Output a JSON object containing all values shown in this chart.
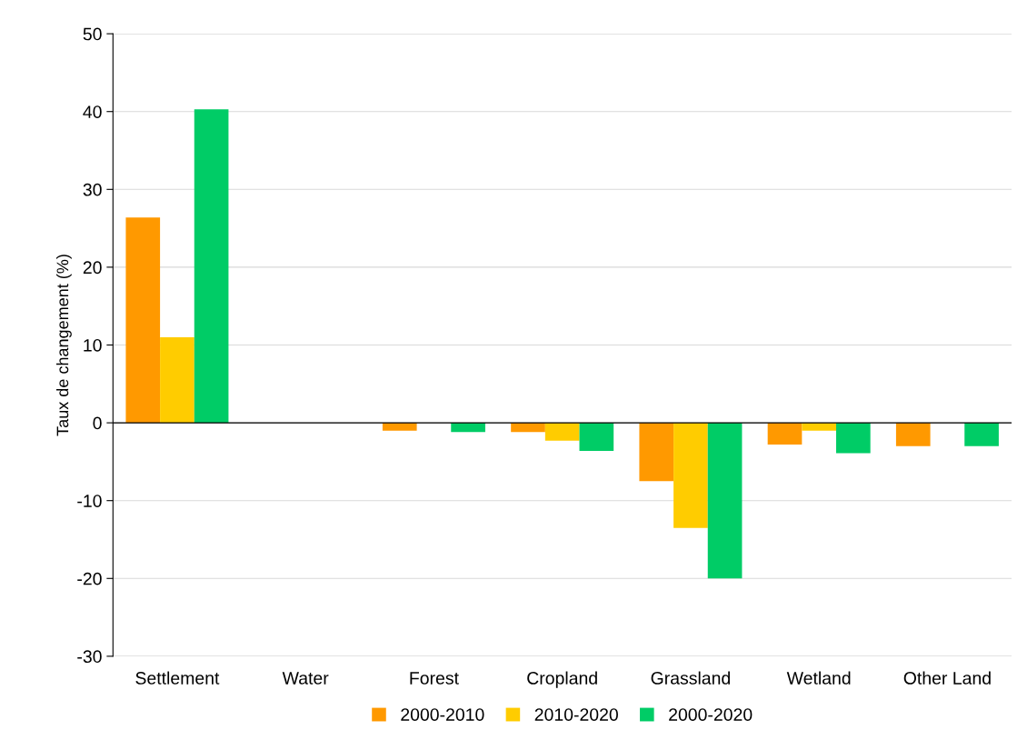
{
  "chart_data": {
    "type": "bar",
    "ylabel": "Taux de changement (%)",
    "categories": [
      "Settlement",
      "Water",
      "Forest",
      "Cropland",
      "Grassland",
      "Wetland",
      "Other Land"
    ],
    "series": [
      {
        "name": "2000-2010",
        "color": "#ff9900",
        "values": [
          26.4,
          0,
          -1.0,
          -1.2,
          -7.5,
          -2.8,
          -3.0
        ]
      },
      {
        "name": "2010-2020",
        "color": "#ffcc00",
        "values": [
          11.0,
          0,
          0,
          -2.3,
          -13.5,
          -1.0,
          0
        ]
      },
      {
        "name": "2000-2020",
        "color": "#00cc66",
        "values": [
          40.3,
          0,
          -1.2,
          -3.6,
          -20.0,
          -3.9,
          -3.0
        ]
      }
    ],
    "ylim": [
      -30,
      50
    ],
    "yticks": [
      -30,
      -20,
      -10,
      0,
      10,
      20,
      30,
      40,
      50
    ],
    "grid": "y",
    "legend": "bottom"
  }
}
